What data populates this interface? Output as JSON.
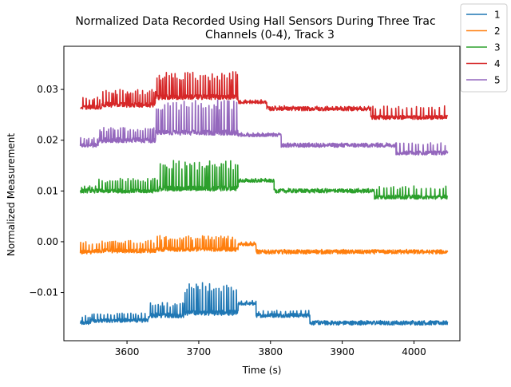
{
  "chart_data": {
    "type": "line",
    "title": "Normalized Data Recorded Using Hall Sensors During Three Trac",
    "subtitle": "Channels (0-4), Track 3",
    "xlabel": "Time (s)",
    "ylabel": "Normalized Measurement",
    "xlim": [
      3512,
      4064
    ],
    "ylim": [
      -0.0195,
      0.0385
    ],
    "x_ticks": [
      3600,
      3700,
      3800,
      3900,
      4000
    ],
    "y_ticks": [
      -0.01,
      0.0,
      0.01,
      0.02,
      0.03
    ],
    "x_tick_labels": [
      "3600",
      "3700",
      "3800",
      "3900",
      "4000"
    ],
    "y_tick_labels": [
      "−0.01",
      "0.00",
      "0.01",
      "0.02",
      "0.03"
    ],
    "grid": false,
    "legend_position": "top-right",
    "series": [
      {
        "name": "1",
        "color": "#1f77b4",
        "segments": [
          {
            "x0": 3535,
            "x1": 3550,
            "base": -0.016,
            "spike": -0.0145,
            "every": 3.5,
            "noise": 0.0004
          },
          {
            "x0": 3550,
            "x1": 3630,
            "base": -0.0155,
            "spike": -0.014,
            "every": 3.5,
            "noise": 0.0004
          },
          {
            "x0": 3630,
            "x1": 3680,
            "base": -0.0145,
            "spike": -0.012,
            "every": 3.2,
            "noise": 0.0005
          },
          {
            "x0": 3680,
            "x1": 3755,
            "base": -0.014,
            "spike": -0.008,
            "every": 3.0,
            "noise": 0.0005
          },
          {
            "x0": 3755,
            "x1": 3780,
            "base": -0.0122,
            "spike": -0.0115,
            "every": 6.0,
            "noise": 0.0003
          },
          {
            "x0": 3780,
            "x1": 3855,
            "base": -0.0145,
            "spike": -0.0135,
            "every": 5.0,
            "noise": 0.0004
          },
          {
            "x0": 3855,
            "x1": 4047,
            "base": -0.016,
            "spike": -0.0155,
            "every": 9.0,
            "noise": 0.0004
          }
        ]
      },
      {
        "name": "2",
        "color": "#ff7f0e",
        "segments": [
          {
            "x0": 3535,
            "x1": 3555,
            "base": -0.002,
            "spike": 0.0,
            "every": 3.5,
            "noise": 0.0004
          },
          {
            "x0": 3555,
            "x1": 3640,
            "base": -0.0018,
            "spike": 0.0003,
            "every": 3.2,
            "noise": 0.0004
          },
          {
            "x0": 3640,
            "x1": 3755,
            "base": -0.0015,
            "spike": 0.0012,
            "every": 3.0,
            "noise": 0.0004
          },
          {
            "x0": 3755,
            "x1": 3780,
            "base": -0.0005,
            "spike": 0.0,
            "every": 6.0,
            "noise": 0.0003
          },
          {
            "x0": 3780,
            "x1": 4047,
            "base": -0.002,
            "spike": -0.0015,
            "every": 12.0,
            "noise": 0.0004
          }
        ]
      },
      {
        "name": "3",
        "color": "#2ca02c",
        "segments": [
          {
            "x0": 3535,
            "x1": 3560,
            "base": 0.01,
            "spike": 0.011,
            "every": 3.5,
            "noise": 0.0004
          },
          {
            "x0": 3560,
            "x1": 3645,
            "base": 0.01,
            "spike": 0.0125,
            "every": 3.2,
            "noise": 0.0004
          },
          {
            "x0": 3645,
            "x1": 3755,
            "base": 0.0105,
            "spike": 0.016,
            "every": 3.0,
            "noise": 0.0005
          },
          {
            "x0": 3755,
            "x1": 3805,
            "base": 0.012,
            "spike": 0.0125,
            "every": 6.0,
            "noise": 0.0003
          },
          {
            "x0": 3805,
            "x1": 3945,
            "base": 0.01,
            "spike": 0.0105,
            "every": 10.0,
            "noise": 0.0004
          },
          {
            "x0": 3945,
            "x1": 4047,
            "base": 0.0088,
            "spike": 0.011,
            "every": 5.0,
            "noise": 0.0004
          }
        ]
      },
      {
        "name": "4",
        "color": "#d62728",
        "segments": [
          {
            "x0": 3535,
            "x1": 3565,
            "base": 0.0265,
            "spike": 0.0285,
            "every": 3.5,
            "noise": 0.0004
          },
          {
            "x0": 3565,
            "x1": 3640,
            "base": 0.027,
            "spike": 0.03,
            "every": 3.2,
            "noise": 0.0005
          },
          {
            "x0": 3640,
            "x1": 3755,
            "base": 0.0285,
            "spike": 0.0335,
            "every": 3.0,
            "noise": 0.0005
          },
          {
            "x0": 3755,
            "x1": 3795,
            "base": 0.0275,
            "spike": 0.028,
            "every": 6.0,
            "noise": 0.0003
          },
          {
            "x0": 3795,
            "x1": 3940,
            "base": 0.0262,
            "spike": 0.0268,
            "every": 10.0,
            "noise": 0.0004
          },
          {
            "x0": 3940,
            "x1": 4047,
            "base": 0.0245,
            "spike": 0.0268,
            "every": 5.0,
            "noise": 0.0004
          }
        ]
      },
      {
        "name": "5",
        "color": "#9467bd",
        "segments": [
          {
            "x0": 3535,
            "x1": 3560,
            "base": 0.019,
            "spike": 0.0205,
            "every": 3.5,
            "noise": 0.0004
          },
          {
            "x0": 3560,
            "x1": 3640,
            "base": 0.02,
            "spike": 0.0225,
            "every": 3.2,
            "noise": 0.0005
          },
          {
            "x0": 3640,
            "x1": 3755,
            "base": 0.0215,
            "spike": 0.028,
            "every": 3.0,
            "noise": 0.0005
          },
          {
            "x0": 3755,
            "x1": 3815,
            "base": 0.021,
            "spike": 0.0215,
            "every": 6.0,
            "noise": 0.0003
          },
          {
            "x0": 3815,
            "x1": 3975,
            "base": 0.019,
            "spike": 0.0195,
            "every": 10.0,
            "noise": 0.0004
          },
          {
            "x0": 3975,
            "x1": 4047,
            "base": 0.0175,
            "spike": 0.0195,
            "every": 5.0,
            "noise": 0.0004
          }
        ]
      }
    ]
  }
}
